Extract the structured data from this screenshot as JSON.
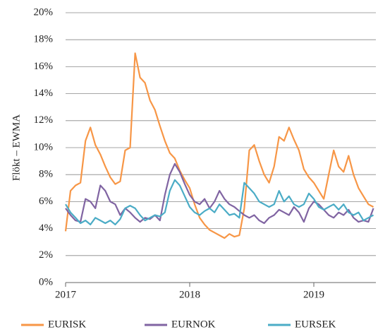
{
  "chart_data": {
    "type": "line",
    "y_label": "Flökt – EWMA",
    "x": [
      2017,
      2017.04,
      2017.08,
      2017.12,
      2017.16,
      2017.2,
      2017.24,
      2017.28,
      2017.32,
      2017.36,
      2017.4,
      2017.44,
      2017.48,
      2017.52,
      2017.56,
      2017.6,
      2017.64,
      2017.68,
      2017.72,
      2017.76,
      2017.8,
      2017.84,
      2017.88,
      2017.92,
      2017.96,
      2018,
      2018.04,
      2018.08,
      2018.12,
      2018.16,
      2018.2,
      2018.24,
      2018.28,
      2018.32,
      2018.36,
      2018.4,
      2018.44,
      2018.48,
      2018.52,
      2018.56,
      2018.6,
      2018.64,
      2018.68,
      2018.72,
      2018.76,
      2018.8,
      2018.84,
      2018.88,
      2018.92,
      2018.96,
      2019,
      2019.04,
      2019.08,
      2019.12,
      2019.16,
      2019.2,
      2019.24,
      2019.28,
      2019.32,
      2019.36,
      2019.4,
      2019.44,
      2019.48
    ],
    "series": [
      {
        "name": "EURISK",
        "color": "#f79646",
        "values": [
          3.8,
          6.8,
          7.2,
          7.4,
          10.5,
          11.5,
          10.2,
          9.5,
          8.6,
          7.8,
          7.3,
          7.5,
          9.8,
          10.0,
          17.0,
          15.2,
          14.8,
          13.5,
          12.8,
          11.6,
          10.5,
          9.6,
          9.2,
          8.3,
          7.6,
          7.0,
          5.8,
          4.8,
          4.3,
          3.9,
          3.7,
          3.5,
          3.3,
          3.6,
          3.4,
          3.5,
          5.5,
          9.8,
          10.2,
          9.0,
          8.0,
          7.4,
          8.6,
          10.8,
          10.5,
          11.5,
          10.6,
          9.8,
          8.4,
          7.8,
          7.4,
          6.8,
          6.2,
          8.0,
          9.8,
          8.6,
          8.2,
          9.4,
          8.0,
          7.0,
          6.4,
          5.8,
          5.6
        ]
      },
      {
        "name": "EURNOK",
        "color": "#8064a2",
        "values": [
          5.5,
          5.0,
          4.6,
          4.5,
          6.2,
          6.0,
          5.5,
          7.2,
          6.8,
          6.0,
          5.8,
          5.0,
          5.5,
          5.2,
          4.8,
          4.5,
          4.8,
          4.7,
          5.0,
          4.6,
          6.5,
          8.0,
          8.8,
          8.2,
          7.3,
          6.5,
          6.0,
          5.8,
          6.2,
          5.5,
          6.0,
          6.8,
          6.2,
          5.8,
          5.6,
          5.3,
          5.0,
          4.8,
          5.0,
          4.6,
          4.4,
          4.8,
          5.0,
          5.4,
          5.2,
          5.0,
          5.6,
          5.2,
          4.5,
          5.5,
          6.0,
          5.8,
          5.4,
          5.0,
          4.8,
          5.2,
          5.0,
          5.4,
          4.8,
          4.5,
          4.6,
          4.5,
          5.5
        ]
      },
      {
        "name": "EURSEK",
        "color": "#4bacc6",
        "values": [
          5.8,
          5.2,
          4.8,
          4.4,
          4.6,
          4.3,
          4.8,
          4.6,
          4.4,
          4.6,
          4.3,
          4.7,
          5.5,
          5.7,
          5.5,
          5.0,
          4.6,
          4.8,
          5.0,
          4.9,
          5.2,
          6.8,
          7.6,
          7.2,
          6.4,
          5.6,
          5.2,
          5.0,
          5.3,
          5.5,
          5.2,
          5.8,
          5.4,
          5.0,
          5.1,
          4.8,
          7.4,
          7.0,
          6.6,
          6.0,
          5.8,
          5.6,
          5.8,
          6.8,
          6.0,
          6.4,
          5.8,
          5.6,
          5.8,
          6.6,
          6.2,
          5.6,
          5.4,
          5.6,
          5.8,
          5.4,
          5.8,
          5.2,
          5.0,
          5.2,
          4.6,
          4.8,
          5.0
        ]
      }
    ],
    "xlim": [
      2017,
      2019.5
    ],
    "xticks": [
      2017,
      2018,
      2019
    ],
    "ylim": [
      0,
      20
    ],
    "yticks": [
      {
        "value": 0,
        "label": "0%"
      },
      {
        "value": 2,
        "label": "2%"
      },
      {
        "value": 4,
        "label": "4%"
      },
      {
        "value": 6,
        "label": "6%"
      },
      {
        "value": 8,
        "label": "8%"
      },
      {
        "value": 10,
        "label": "10%"
      },
      {
        "value": 12,
        "label": "12%"
      },
      {
        "value": 14,
        "label": "14%"
      },
      {
        "value": 16,
        "label": "16%"
      },
      {
        "value": 18,
        "label": "18%"
      },
      {
        "value": 20,
        "label": "20%"
      }
    ],
    "grid": true,
    "legend": "bottom"
  }
}
